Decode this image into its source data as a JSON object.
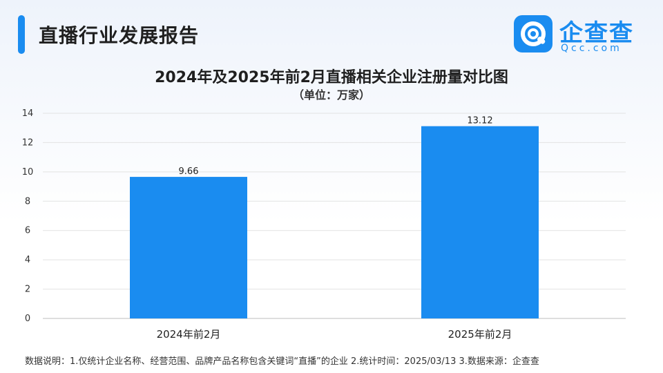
{
  "header": {
    "title": "直播行业发展报告"
  },
  "logo": {
    "name_cn": "企查查",
    "name_en": "Qcc.com",
    "icon": "qcc-logo-icon"
  },
  "chart_data": {
    "type": "bar",
    "title": "2024年及2025年前2月直播相关企业注册量对比图",
    "subtitle": "（单位：万家）",
    "categories": [
      "2024年前2月",
      "2025年前2月"
    ],
    "values": [
      9.66,
      13.12
    ],
    "value_labels": [
      "9.66",
      "13.12"
    ],
    "ylim": [
      0,
      14
    ],
    "yticks": [
      0,
      2,
      4,
      6,
      8,
      10,
      12,
      14
    ],
    "grid": true,
    "bar_color": "#1a8cf0"
  },
  "footnote": "数据说明：1.仅统计企业名称、经营范围、品牌产品名称包含关键词“直播”的企业    2.统计时间：2025/03/13    3.数据来源：企查查"
}
